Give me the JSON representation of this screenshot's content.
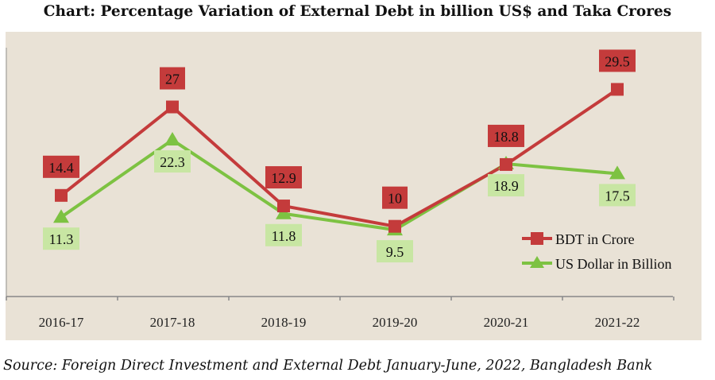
{
  "chart_data": {
    "type": "line",
    "title": "Chart: Percentage Variation of External Debt in billion US$ and Taka Crores",
    "categories": [
      "2016-17",
      "2017-18",
      "2018-19",
      "2019-20",
      "2020-21",
      "2021-22"
    ],
    "series": [
      {
        "name": "BDT  in Crore",
        "values": [
          14.4,
          27,
          12.9,
          10,
          18.8,
          29.5
        ],
        "color": "#c43b3b",
        "label_bg": "#c43b3b",
        "marker": "square"
      },
      {
        "name": "US Dollar in Billion",
        "values": [
          11.3,
          22.3,
          11.8,
          9.5,
          18.9,
          17.5
        ],
        "color": "#7dc242",
        "label_bg": "#c8e6a3",
        "marker": "triangle"
      }
    ],
    "ylim": [
      0,
      37.7
    ],
    "grid": false,
    "legend": "bottom-right",
    "background": "#e9e2d6"
  },
  "source": "Source: Foreign Direct Investment and External Debt January-June, 2022, Bangladesh Bank"
}
